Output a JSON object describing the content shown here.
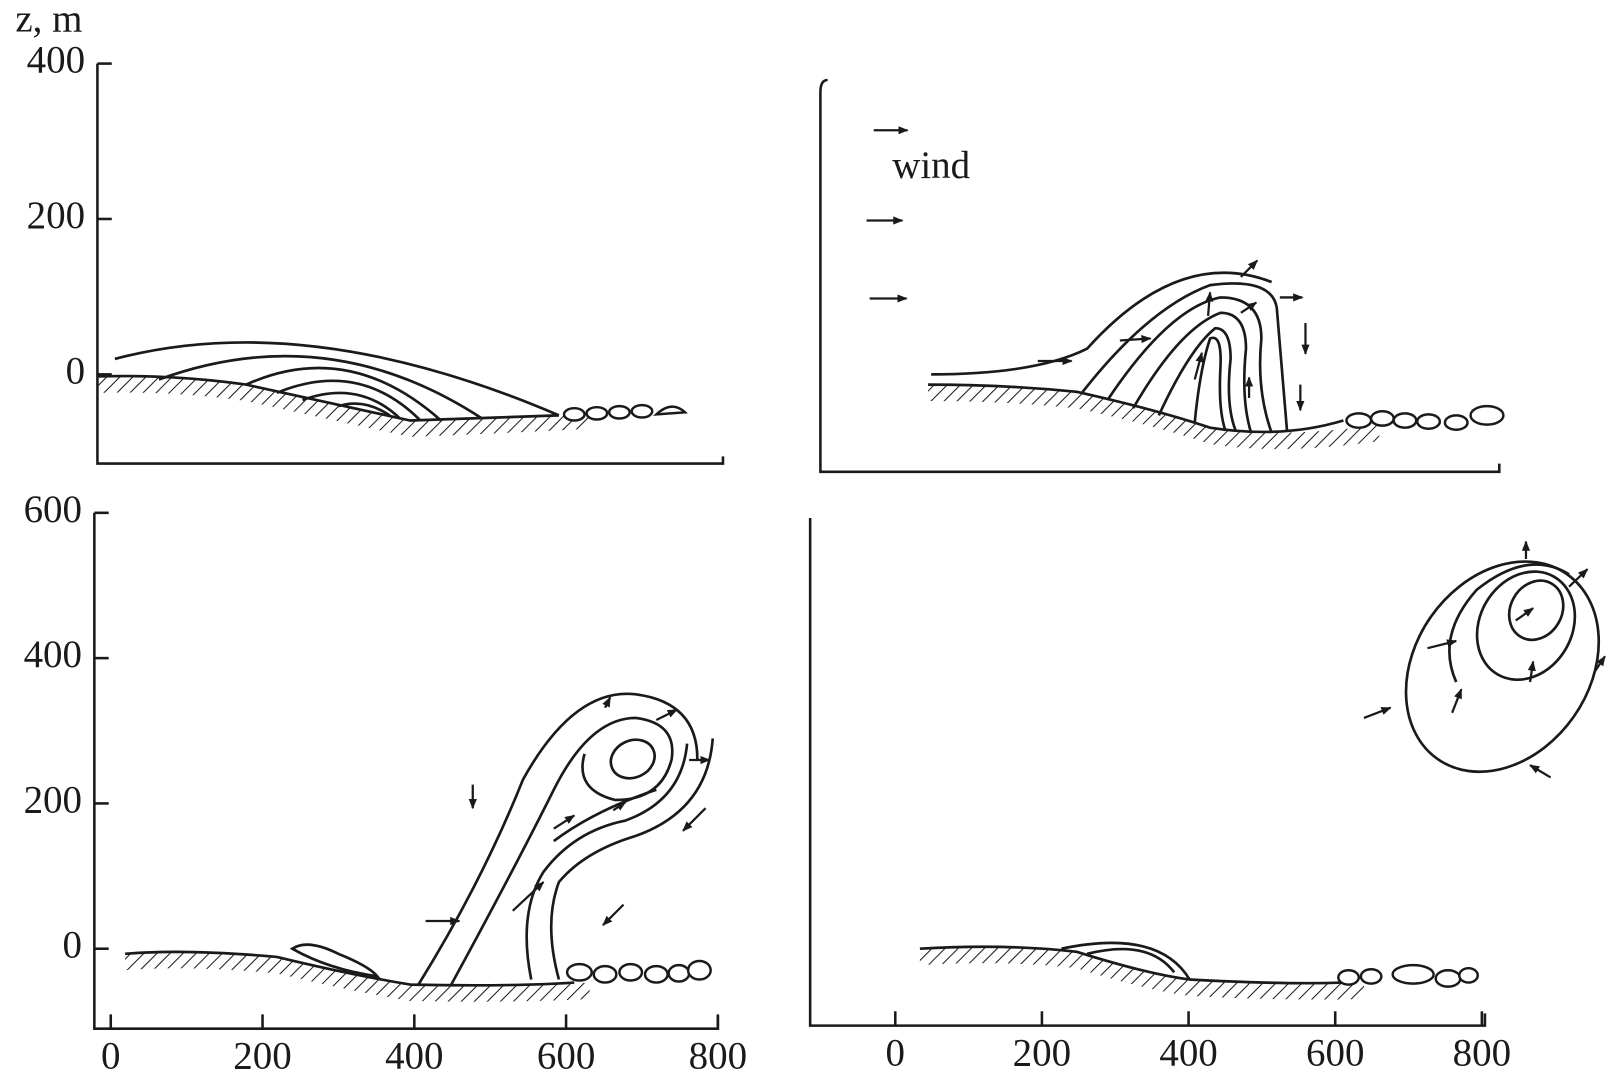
{
  "y_label": "z, m",
  "wind_label": "wind",
  "top_left": {
    "yticks": [
      400,
      200,
      0
    ]
  },
  "bottom_left": {
    "yticks": [
      600,
      400,
      200,
      0
    ],
    "xticks": [
      0,
      200,
      400,
      600,
      800
    ]
  },
  "bottom_right": {
    "xticks": [
      0,
      200,
      400,
      600,
      800
    ]
  }
}
